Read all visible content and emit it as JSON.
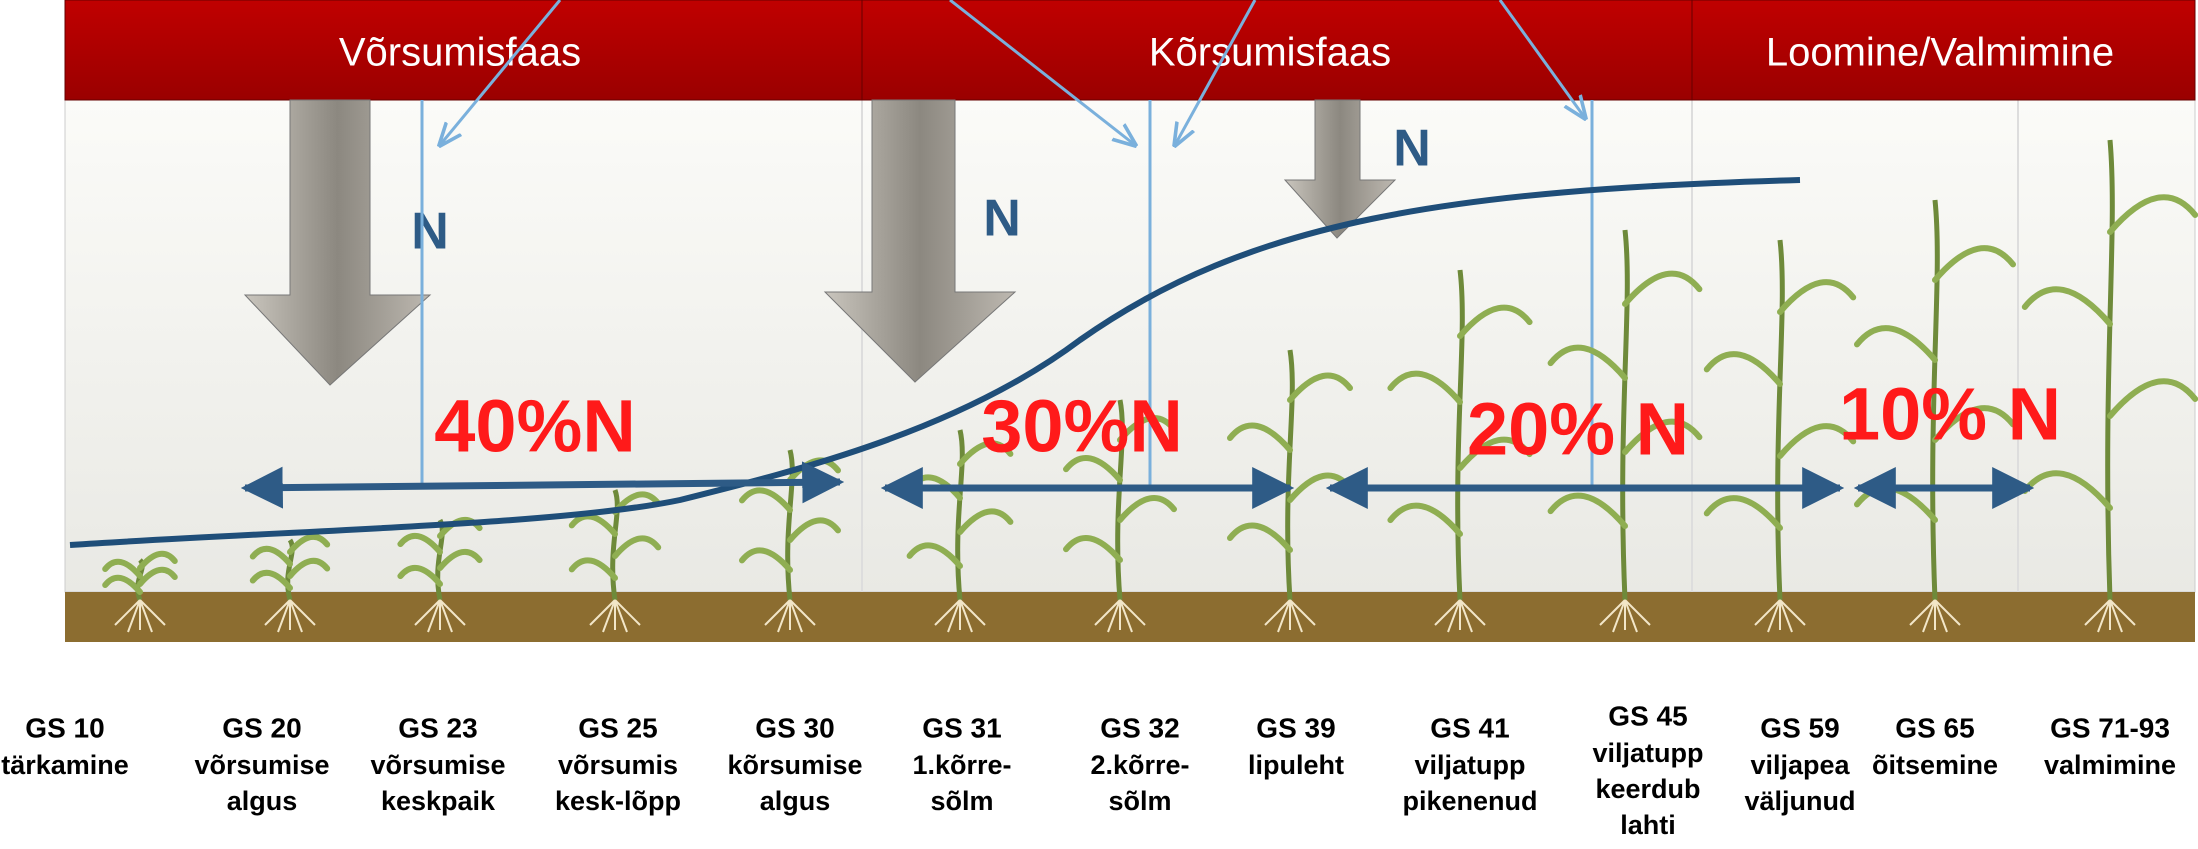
{
  "phases": [
    {
      "label": "Võrsumisfaas"
    },
    {
      "label": "Kõrsumisfaas"
    },
    {
      "label": "Loomine/Valmimine"
    }
  ],
  "n_marks": [
    "N",
    "N",
    "N"
  ],
  "n_shares": [
    "40%N",
    "30%N",
    "20% N",
    "10% N"
  ],
  "stages": [
    {
      "code": "GS 10",
      "description": [
        "tärkamine"
      ]
    },
    {
      "code": "GS 20",
      "description": [
        "võrsumise",
        "algus"
      ]
    },
    {
      "code": "GS 23",
      "description": [
        "võrsumise",
        "keskpaik"
      ]
    },
    {
      "code": "GS 25",
      "description": [
        "võrsumis",
        "kesk-lõpp"
      ]
    },
    {
      "code": "GS 30",
      "description": [
        "kõrsumise",
        "algus"
      ]
    },
    {
      "code": "GS 31",
      "description": [
        "1.kõrre-",
        "sõlm"
      ]
    },
    {
      "code": "GS 32",
      "description": [
        "2.kõrre-",
        "sõlm"
      ]
    },
    {
      "code": "GS 39",
      "description": [
        "lipuleht"
      ]
    },
    {
      "code": "GS 41",
      "description": [
        "viljatupp",
        "pikenenud"
      ]
    },
    {
      "code": "GS 45",
      "description": [
        "viljatupp",
        "keerdub",
        "lahti"
      ]
    },
    {
      "code": "GS 59",
      "description": [
        "viljapea",
        "väljunud"
      ]
    },
    {
      "code": "GS 65",
      "description": [
        "õitsemine"
      ]
    },
    {
      "code": "GS 71-93",
      "description": [
        "valmimine"
      ]
    }
  ]
}
